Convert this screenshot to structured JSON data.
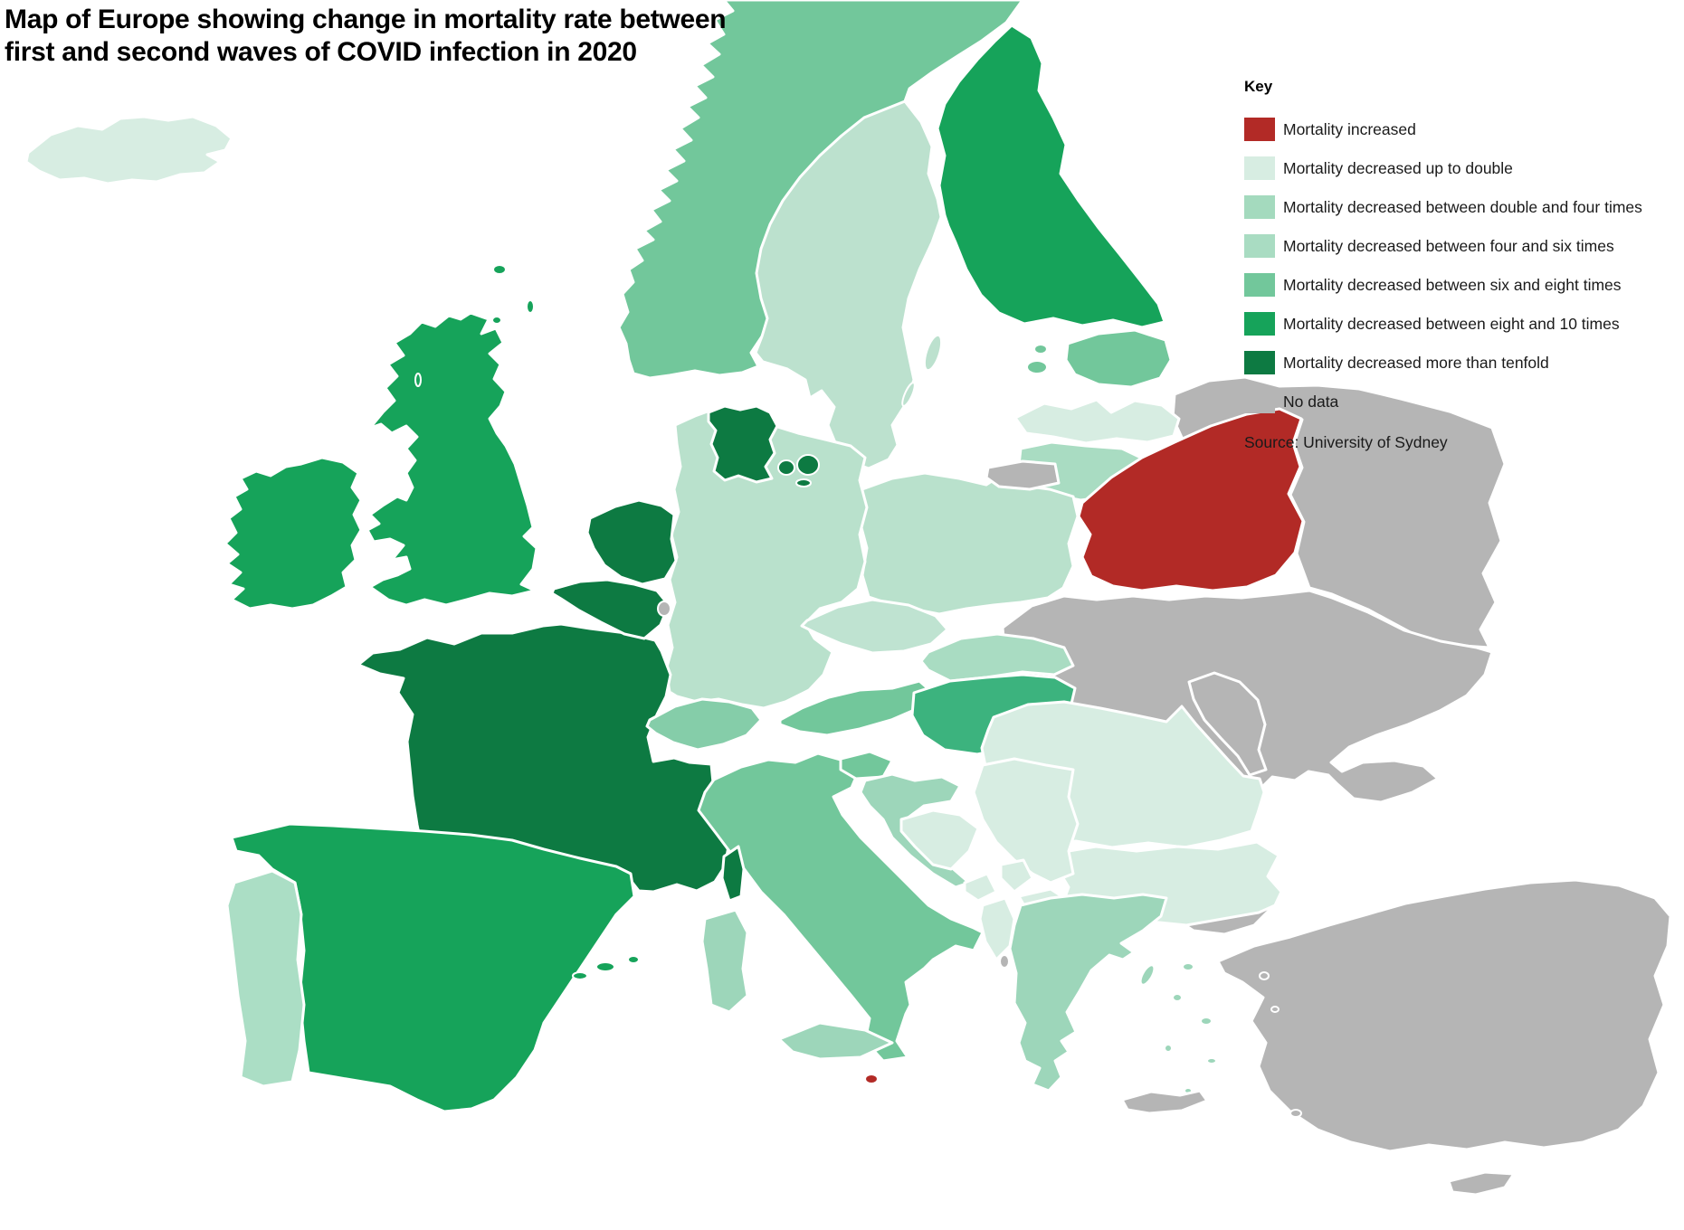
{
  "title": {
    "line1": "Map of Europe showing change in mortality rate between",
    "line2": "first and second waves of COVID infection in 2020"
  },
  "legend": {
    "heading": "Key",
    "items": [
      {
        "label": "Mortality increased",
        "category": "increased"
      },
      {
        "label": "Mortality decreased up to double",
        "category": "up_to_double"
      },
      {
        "label": "Mortality decreased between double and four times",
        "category": "double_four"
      },
      {
        "label": "Mortality decreased between four and six times",
        "category": "four_six"
      },
      {
        "label": "Mortality decreased between six and eight times",
        "category": "six_eight"
      },
      {
        "label": "Mortality decreased between eight and 10 times",
        "category": "eight_ten"
      },
      {
        "label": "Mortality decreased more than tenfold",
        "category": "tenfold"
      },
      {
        "label": "No data",
        "category": "no_data"
      }
    ],
    "source": "Source: University of Sydney"
  },
  "palette": {
    "increased": "#b22a26",
    "up_to_double": "#d7ede2",
    "double_four": "#a4dabe",
    "four_six": "#a9dcc2",
    "six_eight": "#72c79b",
    "eight_ten": "#16a35a",
    "tenfold": "#0d7a42",
    "no_data": "#b5b5b5",
    "border": "#ffffff",
    "background": "#ffffff",
    "title_color": "#000000"
  },
  "map": {
    "countries": {
      "iceland": {
        "name": "Iceland",
        "category": "up_to_double"
      },
      "norway": {
        "name": "Norway",
        "category": "six_eight"
      },
      "sweden": {
        "name": "Sweden",
        "category": "double_four",
        "fill": "#bce1ce"
      },
      "finland": {
        "name": "Finland",
        "category": "eight_ten"
      },
      "denmark": {
        "name": "Denmark",
        "category": "tenfold"
      },
      "faroe_islands": {
        "name": "Faroe Islands",
        "category": "eight_ten"
      },
      "united_kingdom": {
        "name": "United Kingdom",
        "category": "eight_ten"
      },
      "ireland": {
        "name": "Ireland",
        "category": "eight_ten"
      },
      "estonia": {
        "name": "Estonia",
        "category": "six_eight"
      },
      "latvia": {
        "name": "Latvia",
        "category": "up_to_double"
      },
      "lithuania": {
        "name": "Lithuania",
        "category": "four_six"
      },
      "kaliningrad": {
        "name": "Kaliningrad (Russia)",
        "category": "no_data"
      },
      "belarus": {
        "name": "Belarus",
        "category": "increased"
      },
      "russia": {
        "name": "Russia",
        "category": "no_data"
      },
      "ukraine": {
        "name": "Ukraine",
        "category": "no_data"
      },
      "moldova": {
        "name": "Moldova",
        "category": "no_data"
      },
      "poland": {
        "name": "Poland",
        "category": "double_four",
        "fill": "#b9e1cc"
      },
      "germany": {
        "name": "Germany",
        "category": "double_four",
        "fill": "#b9e1cc"
      },
      "czechia": {
        "name": "Czechia",
        "category": "double_four",
        "fill": "#bfe3d1"
      },
      "slovakia": {
        "name": "Slovakia",
        "category": "four_six"
      },
      "austria": {
        "name": "Austria",
        "category": "six_eight"
      },
      "switzerland": {
        "name": "Switzerland",
        "category": "six_eight",
        "fill": "#85cda9"
      },
      "hungary": {
        "name": "Hungary",
        "category": "eight_ten",
        "fill": "#3cb37e"
      },
      "france": {
        "name": "France",
        "category": "tenfold"
      },
      "netherlands": {
        "name": "Netherlands",
        "category": "tenfold"
      },
      "belgium": {
        "name": "Belgium",
        "category": "tenfold"
      },
      "luxembourg": {
        "name": "Luxembourg",
        "category": "no_data"
      },
      "spain": {
        "name": "Spain",
        "category": "eight_ten"
      },
      "portugal": {
        "name": "Portugal",
        "category": "four_six",
        "fill": "#abdec5"
      },
      "italy": {
        "name": "Italy",
        "category": "six_eight"
      },
      "sardinia": {
        "name": "Sardinia (Italy)",
        "category": "four_six",
        "fill": "#9dd6ba"
      },
      "sicily": {
        "name": "Sicily (Italy)",
        "category": "four_six",
        "fill": "#9dd6ba"
      },
      "malta": {
        "name": "Malta",
        "category": "increased"
      },
      "slovenia": {
        "name": "Slovenia",
        "category": "six_eight"
      },
      "croatia": {
        "name": "Croatia",
        "category": "four_six",
        "fill": "#9dd6ba"
      },
      "bosnia_herzegovina": {
        "name": "Bosnia and Herzegovina",
        "category": "up_to_double"
      },
      "serbia": {
        "name": "Serbia",
        "category": "up_to_double"
      },
      "montenegro": {
        "name": "Montenegro",
        "category": "up_to_double"
      },
      "kosovo": {
        "name": "Kosovo",
        "category": "up_to_double"
      },
      "north_macedonia": {
        "name": "North Macedonia",
        "category": "up_to_double"
      },
      "albania": {
        "name": "Albania",
        "category": "up_to_double"
      },
      "romania": {
        "name": "Romania",
        "category": "up_to_double"
      },
      "bulgaria": {
        "name": "Bulgaria",
        "category": "up_to_double"
      },
      "greece": {
        "name": "Greece",
        "category": "four_six",
        "fill": "#9dd6ba"
      },
      "greek_islands": {
        "name": "Greek islands",
        "category": "four_six",
        "fill": "#9dd6ba"
      },
      "crete": {
        "name": "Crete",
        "category": "no_data"
      },
      "corfu": {
        "name": "Corfu",
        "category": "no_data"
      },
      "turkey": {
        "name": "Turkey",
        "category": "no_data"
      },
      "cyprus": {
        "name": "Cyprus",
        "category": "no_data"
      }
    }
  }
}
